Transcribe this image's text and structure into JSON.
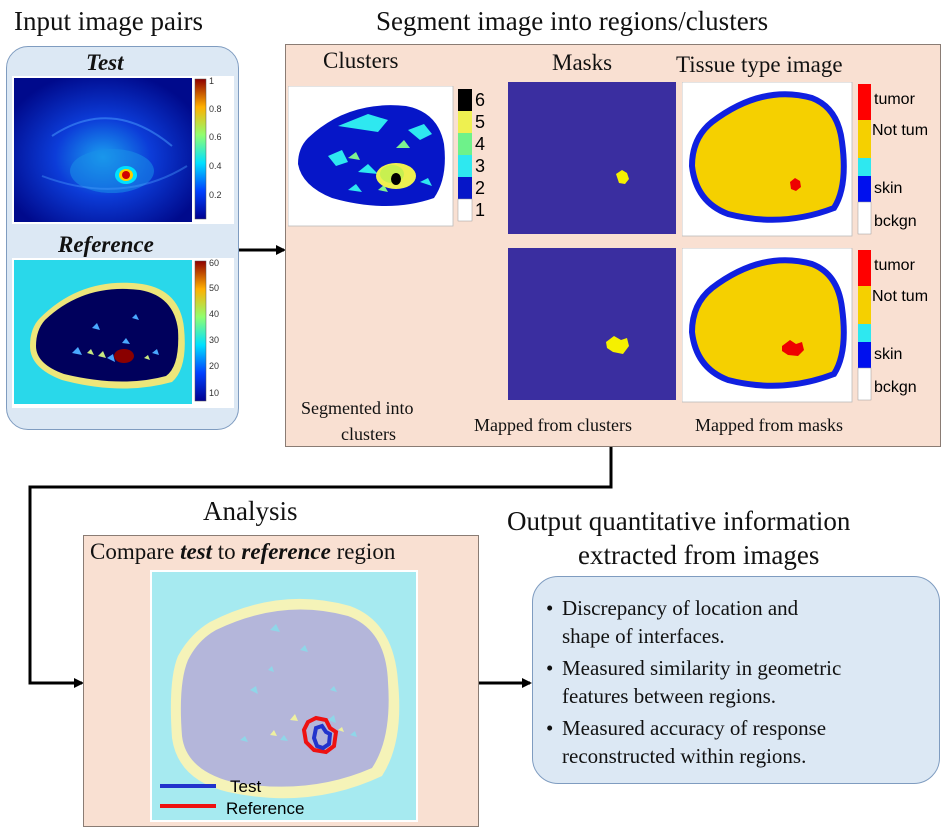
{
  "input": {
    "title": "Input image pairs",
    "test_label": "Test",
    "reference_label": "Reference",
    "test_colorbar_ticks": [
      "1",
      "0.8",
      "0.6",
      "0.4",
      "0.2"
    ],
    "reference_colorbar_ticks": [
      "60",
      "50",
      "40",
      "30",
      "20",
      "10"
    ]
  },
  "segment": {
    "title": "Segment image into regions/clusters",
    "clusters_header": "Clusters",
    "masks_header": "Masks",
    "tissue_header": "Tissue type  image",
    "cluster_legend": [
      "6",
      "5",
      "4",
      "3",
      "2",
      "1"
    ],
    "tissue_legend": [
      "tumor",
      "Not tum",
      "skin",
      "bckgn"
    ],
    "caption_clusters_line1": "Segmented into",
    "caption_clusters_line2": "clusters",
    "caption_masks": "Mapped from clusters",
    "caption_tissue": "Mapped from masks"
  },
  "analysis": {
    "title": "Analysis",
    "compare_pre": "Compare ",
    "compare_test": "test",
    "compare_mid": " to ",
    "compare_ref": "reference",
    "compare_post": " region",
    "legend_test": "Test",
    "legend_reference": "Reference"
  },
  "output": {
    "title_line1": "Output quantitative information",
    "title_line2": "extracted from images",
    "bullets": [
      [
        "Discrepancy of location and",
        "shape of interfaces."
      ],
      [
        "Measured similarity  in geometric",
        "features between regions."
      ],
      [
        "Measured accuracy of response",
        "reconstructed within regions."
      ]
    ]
  },
  "colors": {
    "panel_blue": "#dce8f4",
    "panel_peach": "#f9e0d2",
    "tumor": "#ff0000",
    "not_tumor": "#f5d000",
    "skin": "#0000ee",
    "mask_background": "#3a2ea0",
    "test_contour": "#2233cc",
    "reference_contour": "#ee1111"
  }
}
